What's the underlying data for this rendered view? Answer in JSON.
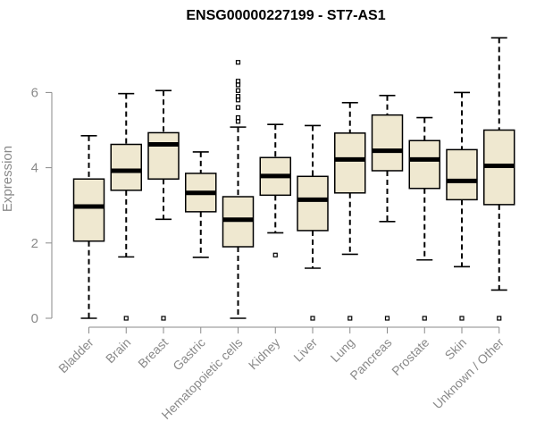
{
  "chart_data": {
    "type": "boxplot",
    "title": "ENSG00000227199 - ST7-AS1",
    "xlabel": "",
    "ylabel": "Expression",
    "ylim": [
      0,
      7.5
    ],
    "yticks": [
      0,
      2,
      4,
      6
    ],
    "categories": [
      "Bladder",
      "Brain",
      "Breast",
      "Gastric",
      "Hematopoietic cells",
      "Kidney",
      "Liver",
      "Lung",
      "Pancreas",
      "Prostate",
      "Skin",
      "Unknown / Other"
    ],
    "boxes": [
      {
        "whisker_low": 0.0,
        "q1": 2.05,
        "median": 2.97,
        "q3": 3.7,
        "whisker_high": 4.85,
        "outliers": []
      },
      {
        "whisker_low": 1.63,
        "q1": 3.4,
        "median": 3.92,
        "q3": 4.62,
        "whisker_high": 5.97,
        "outliers": [
          0.0
        ]
      },
      {
        "whisker_low": 2.63,
        "q1": 3.7,
        "median": 4.62,
        "q3": 4.93,
        "whisker_high": 6.05,
        "outliers": [
          0.0
        ]
      },
      {
        "whisker_low": 1.62,
        "q1": 2.83,
        "median": 3.33,
        "q3": 3.85,
        "whisker_high": 4.42,
        "outliers": []
      },
      {
        "whisker_low": 0.0,
        "q1": 1.9,
        "median": 2.62,
        "q3": 3.23,
        "whisker_high": 5.08,
        "outliers": [
          5.23,
          5.33,
          5.6,
          5.8,
          5.9,
          6.05,
          6.2,
          6.3,
          6.8
        ]
      },
      {
        "whisker_low": 2.27,
        "q1": 3.27,
        "median": 3.78,
        "q3": 4.27,
        "whisker_high": 5.15,
        "outliers": [
          1.68
        ]
      },
      {
        "whisker_low": 1.33,
        "q1": 2.33,
        "median": 3.15,
        "q3": 3.77,
        "whisker_high": 5.12,
        "outliers": [
          0.0
        ]
      },
      {
        "whisker_low": 1.7,
        "q1": 3.33,
        "median": 4.22,
        "q3": 4.92,
        "whisker_high": 5.73,
        "outliers": [
          0.0
        ]
      },
      {
        "whisker_low": 2.57,
        "q1": 3.92,
        "median": 4.45,
        "q3": 5.4,
        "whisker_high": 5.92,
        "outliers": [
          0.0
        ]
      },
      {
        "whisker_low": 1.55,
        "q1": 3.45,
        "median": 4.22,
        "q3": 4.72,
        "whisker_high": 5.33,
        "outliers": [
          0.0
        ]
      },
      {
        "whisker_low": 1.37,
        "q1": 3.15,
        "median": 3.65,
        "q3": 4.48,
        "whisker_high": 6.0,
        "outliers": [
          0.0
        ]
      },
      {
        "whisker_low": 0.75,
        "q1": 3.02,
        "median": 4.05,
        "q3": 5.0,
        "whisker_high": 7.45,
        "outliers": [
          0.0
        ]
      }
    ],
    "grid": false,
    "legend": "none"
  },
  "colors": {
    "box_fill": "#efe8d0",
    "box_stroke": "#000000",
    "axis": "#8a8a8a",
    "text_muted": "#8a8a8a",
    "title": "#000000"
  }
}
